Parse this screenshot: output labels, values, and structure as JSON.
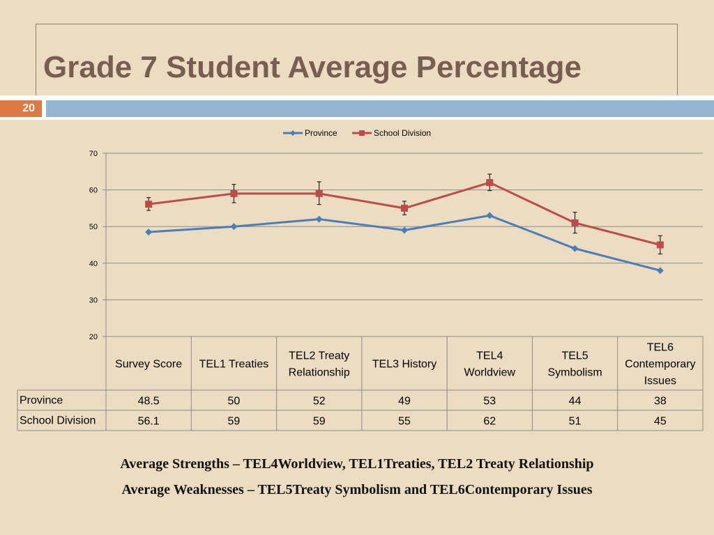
{
  "slide": {
    "title": "Grade 7 Student Average Percentage",
    "number": "20",
    "footer_lines": [
      "Average Strengths – TEL4Worldview,  TEL1Treaties, TEL2 Treaty Relationship",
      "Average Weaknesses – TEL5Treaty Symbolism and  TEL6Contemporary Issues"
    ]
  },
  "chart_data": {
    "type": "line",
    "categories": [
      [
        "Survey Score"
      ],
      [
        "TEL1 Treaties"
      ],
      [
        "TEL2 Treaty",
        "Relationship"
      ],
      [
        "TEL3 History"
      ],
      [
        "TEL4",
        "Worldview"
      ],
      [
        "TEL5",
        "Symbolism"
      ],
      [
        "TEL6",
        "Contemporary",
        "Issues"
      ]
    ],
    "series": [
      {
        "name": "Province",
        "values": [
          48.5,
          50,
          52,
          49,
          53,
          44,
          38
        ],
        "labels": [
          "48.5",
          "50",
          "52",
          "49",
          "53",
          "44",
          "38"
        ],
        "color": "#4a7ebb",
        "marker": "diamond"
      },
      {
        "name": "School Division",
        "values": [
          56.1,
          59,
          59,
          55,
          62,
          51,
          45
        ],
        "labels": [
          "56.1",
          "59",
          "59",
          "55",
          "62",
          "51",
          "45"
        ],
        "color": "#be4b48",
        "marker": "square",
        "error_low": [
          54.4,
          56.5,
          56.0,
          53.2,
          59.8,
          48.2,
          42.5
        ],
        "error_high": [
          57.9,
          61.5,
          62.2,
          56.9,
          64.3,
          53.9,
          47.5
        ]
      }
    ],
    "ylim": [
      20,
      70
    ],
    "yticks": [
      20,
      30,
      40,
      50,
      60,
      70
    ],
    "grid": true,
    "legend": "top-center",
    "data_table": true
  }
}
